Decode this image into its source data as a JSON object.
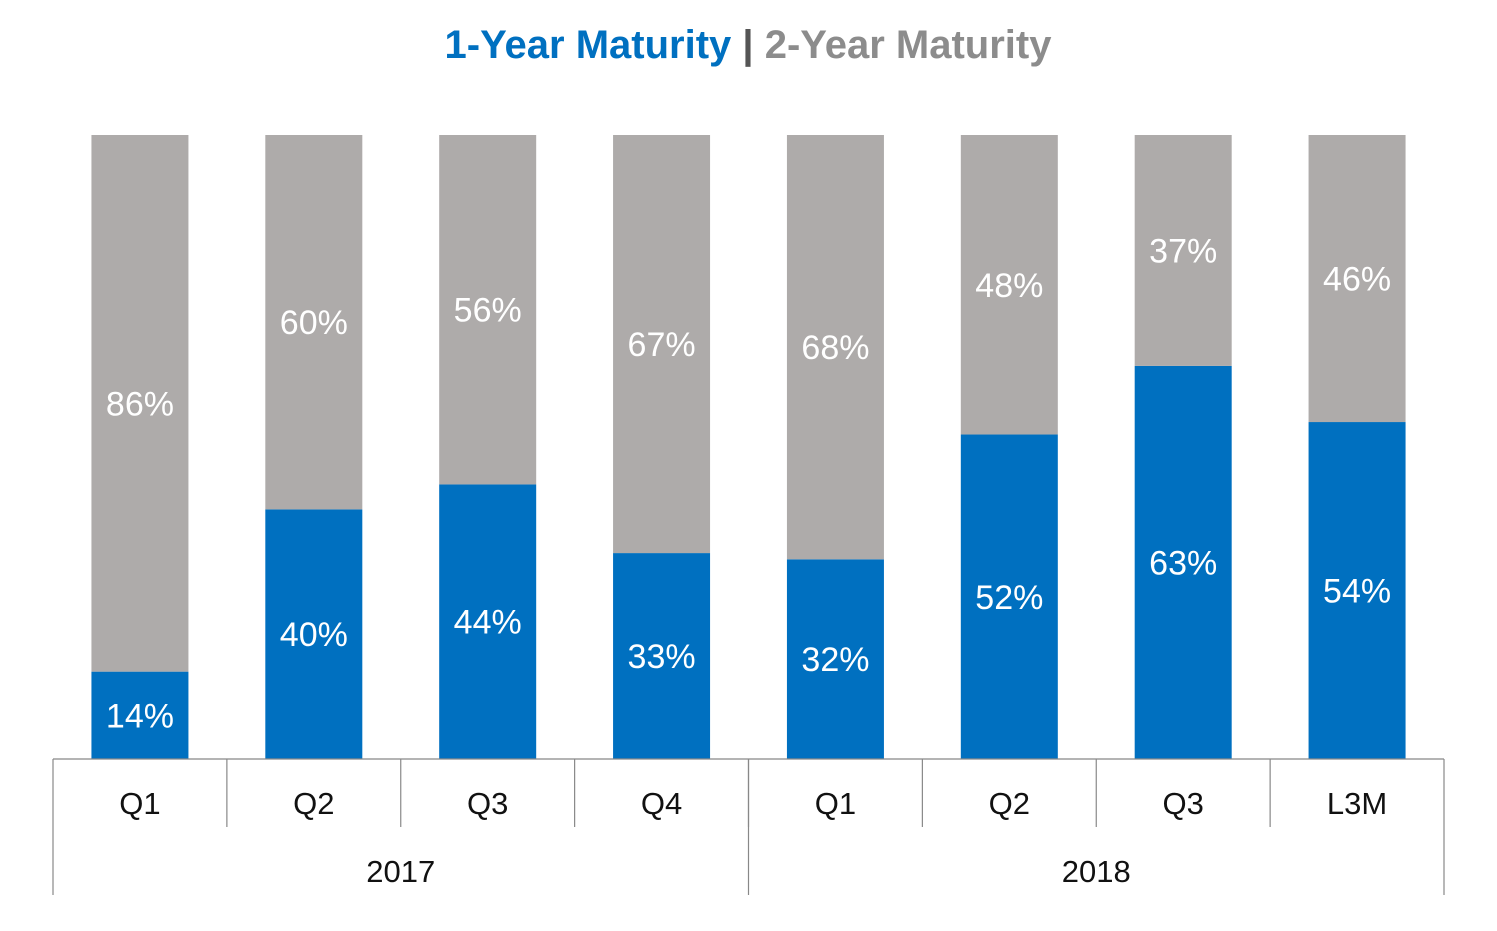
{
  "chart_data": {
    "type": "bar",
    "stacked": true,
    "title_parts": [
      {
        "text": "1-Year Maturity",
        "color": "#0070C0"
      },
      {
        "text": " | ",
        "color": "#555555"
      },
      {
        "text": "2-Year Maturity",
        "color": "#8C8C8C"
      }
    ],
    "categories": [
      "Q1",
      "Q2",
      "Q3",
      "Q4",
      "Q1",
      "Q2",
      "Q3",
      "L3M"
    ],
    "groups": [
      {
        "label": "2017",
        "span": 4
      },
      {
        "label": "2018",
        "span": 4
      }
    ],
    "series": [
      {
        "name": "1-Year Maturity",
        "color": "#0070C0",
        "values": [
          14,
          40,
          44,
          33,
          32,
          52,
          63,
          54
        ],
        "labels": [
          "14%",
          "40%",
          "44%",
          "33%",
          "32%",
          "52%",
          "63%",
          "54%"
        ]
      },
      {
        "name": "2-Year Maturity",
        "color": "#AEABAA",
        "values": [
          86,
          60,
          56,
          67,
          68,
          48,
          37,
          46
        ],
        "labels": [
          "86%",
          "60%",
          "56%",
          "67%",
          "68%",
          "48%",
          "37%",
          "46%"
        ]
      }
    ],
    "ylim": [
      0,
      100
    ],
    "legend": "title",
    "grid": false
  }
}
